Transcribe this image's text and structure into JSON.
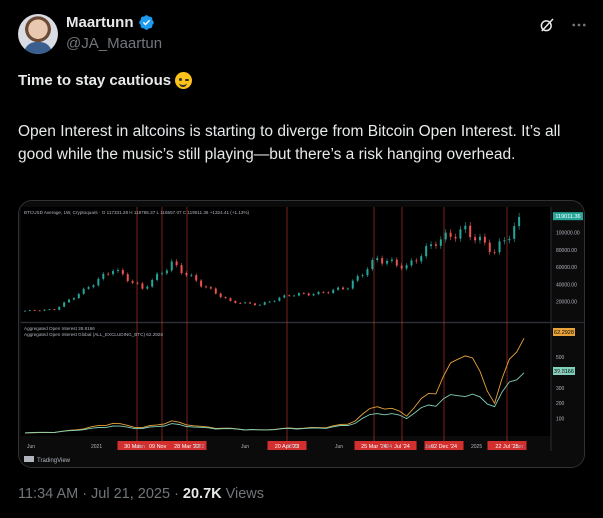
{
  "author": {
    "name": "Maartunn",
    "handle": "@JA_Maartun",
    "verified": true,
    "avatar_icon": "avatar-photo"
  },
  "header_icons": [
    "grok-icon",
    "more-icon"
  ],
  "post": {
    "title": "Time to stay cautious",
    "title_emoji": "winking-face-icon",
    "body": "Open Interest in altcoins is starting to diverge from Bitcoin Open Interest. It’s all good while the music’s still playing—but there’s a risk hanging overhead."
  },
  "chart_data": [
    {
      "type": "candlestick",
      "legend": "BTCUSD Average, 1W, Cryptoquant · O 117331.28 H 119765.37 L 116557.07 C 119011.36 +1324.41 (+1.13%)",
      "current_value_label": "119011.36",
      "y_ticks": [
        "100000.00",
        "80000.00",
        "60000.00",
        "40000.00",
        "20000.00"
      ],
      "ylim": [
        0,
        125000
      ],
      "x_ticks": [
        "Jun",
        "2021",
        "Jun",
        "2022",
        "Jun",
        "2023",
        "Jun",
        "2024",
        "Jun",
        "2025",
        "Jun"
      ],
      "x": [
        "2020-06",
        "2020-09",
        "2021-01",
        "2021-04",
        "2021-07",
        "2021-11",
        "2022-02",
        "2022-06",
        "2022-11",
        "2023-03",
        "2023-07",
        "2023-11",
        "2024-03",
        "2024-07",
        "2024-11",
        "2025-01",
        "2025-04",
        "2025-07"
      ],
      "values": [
        9500,
        11000,
        33000,
        58000,
        35000,
        64000,
        40000,
        20000,
        16500,
        28000,
        29500,
        37000,
        70000,
        60000,
        90000,
        103000,
        78000,
        119000
      ]
    },
    {
      "type": "line",
      "legend_lines": [
        "Aggregated Open Interest 39.8166",
        "Aggregated Open Interest Global (ALL_EXCLUDING_BTC) 62.2928"
      ],
      "series": [
        {
          "name": "Aggregated Open Interest",
          "color": "#7fd1b9",
          "last_label": "39.8166",
          "values": [
            8,
            10,
            25,
            45,
            30,
            55,
            35,
            28,
            22,
            30,
            32,
            48,
            120,
            95,
            180,
            230,
            160,
            398
          ]
        },
        {
          "name": "Aggregated Open Interest Global (ALL_EXCLUDING_BTC)",
          "color": "#e8a43a",
          "last_label": "62.2928",
          "values": [
            6,
            9,
            30,
            60,
            35,
            70,
            40,
            30,
            22,
            32,
            35,
            55,
            160,
            110,
            260,
            480,
            180,
            622
          ]
        }
      ],
      "y_ticks": [
        "500",
        "400",
        "300",
        "200",
        "100"
      ],
      "ylim": [
        0,
        650
      ]
    }
  ],
  "event_labels": [
    "30 Mar '21",
    "09 Nov '21",
    "28 Mar '22",
    "20 Apr '23",
    "25 Mar '24",
    "Jul '24",
    "02 Dec '24",
    "22 Jul '25"
  ],
  "watermark": "TradingView",
  "meta": {
    "time": "11:34 AM",
    "date": "Jul 21, 2025",
    "views_count": "20.7K",
    "views_label": "Views"
  }
}
